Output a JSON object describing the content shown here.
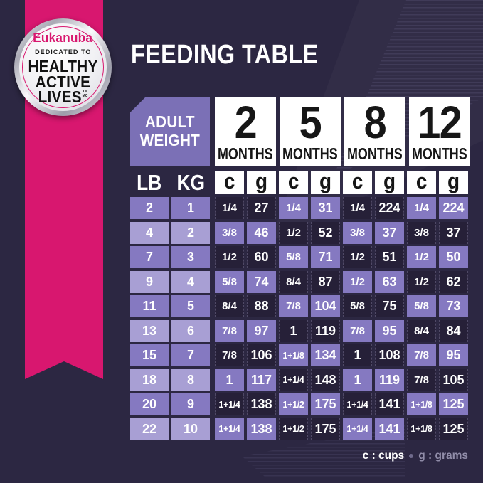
{
  "badge": {
    "brand": "Eukanuba",
    "tagline": "DEDICATED TO",
    "line1": "HEALTHY",
    "line2": "ACTIVE",
    "line3": "LIVES",
    "trademark": "TM",
    "trademark2": "MC"
  },
  "title": "FEEDING TABLE",
  "table": {
    "corner_line1": "ADULT",
    "corner_line2": "WEIGHT",
    "months": [
      {
        "number": "2",
        "label": "MONTHS"
      },
      {
        "number": "5",
        "label": "MONTHS"
      },
      {
        "number": "8",
        "label": "MONTHS"
      },
      {
        "number": "12",
        "label": "MONTHS"
      }
    ],
    "weight_headers": [
      "LB",
      "KG"
    ],
    "unit_columns": [
      "c",
      "g",
      "c",
      "g",
      "c",
      "g",
      "c",
      "g"
    ],
    "rows": [
      {
        "lb": "2",
        "kg": "1",
        "values": [
          "1/4",
          "27",
          "1/4",
          "31",
          "1/4",
          "224",
          "1/4",
          "224"
        ]
      },
      {
        "lb": "4",
        "kg": "2",
        "values": [
          "3/8",
          "46",
          "1/2",
          "52",
          "3/8",
          "37",
          "3/8",
          "37"
        ]
      },
      {
        "lb": "7",
        "kg": "3",
        "values": [
          "1/2",
          "60",
          "5/8",
          "71",
          "1/2",
          "51",
          "1/2",
          "50"
        ]
      },
      {
        "lb": "9",
        "kg": "4",
        "values": [
          "5/8",
          "74",
          "8/4",
          "87",
          "1/2",
          "63",
          "1/2",
          "62"
        ]
      },
      {
        "lb": "11",
        "kg": "5",
        "values": [
          "8/4",
          "88",
          "7/8",
          "104",
          "5/8",
          "75",
          "5/8",
          "73"
        ]
      },
      {
        "lb": "13",
        "kg": "6",
        "values": [
          "7/8",
          "97",
          "1",
          "119",
          "7/8",
          "95",
          "8/4",
          "84"
        ]
      },
      {
        "lb": "15",
        "kg": "7",
        "values": [
          "7/8",
          "106",
          "1+1/8",
          "134",
          "1",
          "108",
          "7/8",
          "95"
        ]
      },
      {
        "lb": "18",
        "kg": "8",
        "values": [
          "1",
          "117",
          "1+1/4",
          "148",
          "1",
          "119",
          "7/8",
          "105"
        ]
      },
      {
        "lb": "20",
        "kg": "9",
        "values": [
          "1+1/4",
          "138",
          "1+1/2",
          "175",
          "1+1/4",
          "141",
          "1+1/8",
          "125"
        ]
      },
      {
        "lb": "22",
        "kg": "10",
        "values": [
          "1+1/4",
          "138",
          "1+1/2",
          "175",
          "1+1/4",
          "141",
          "1+1/8",
          "125"
        ]
      }
    ]
  },
  "legend": {
    "cups": "c : cups",
    "grams": "g : grams"
  },
  "colors": {
    "background": "#2c2742",
    "pink": "#d8176f",
    "dark_cell": "#262038",
    "medium_cell": "#8579c1",
    "light_cell": "#a89fd4",
    "accent_box": "#7b70b6",
    "white_box": "#ffffff",
    "legend_muted": "#918da9"
  }
}
